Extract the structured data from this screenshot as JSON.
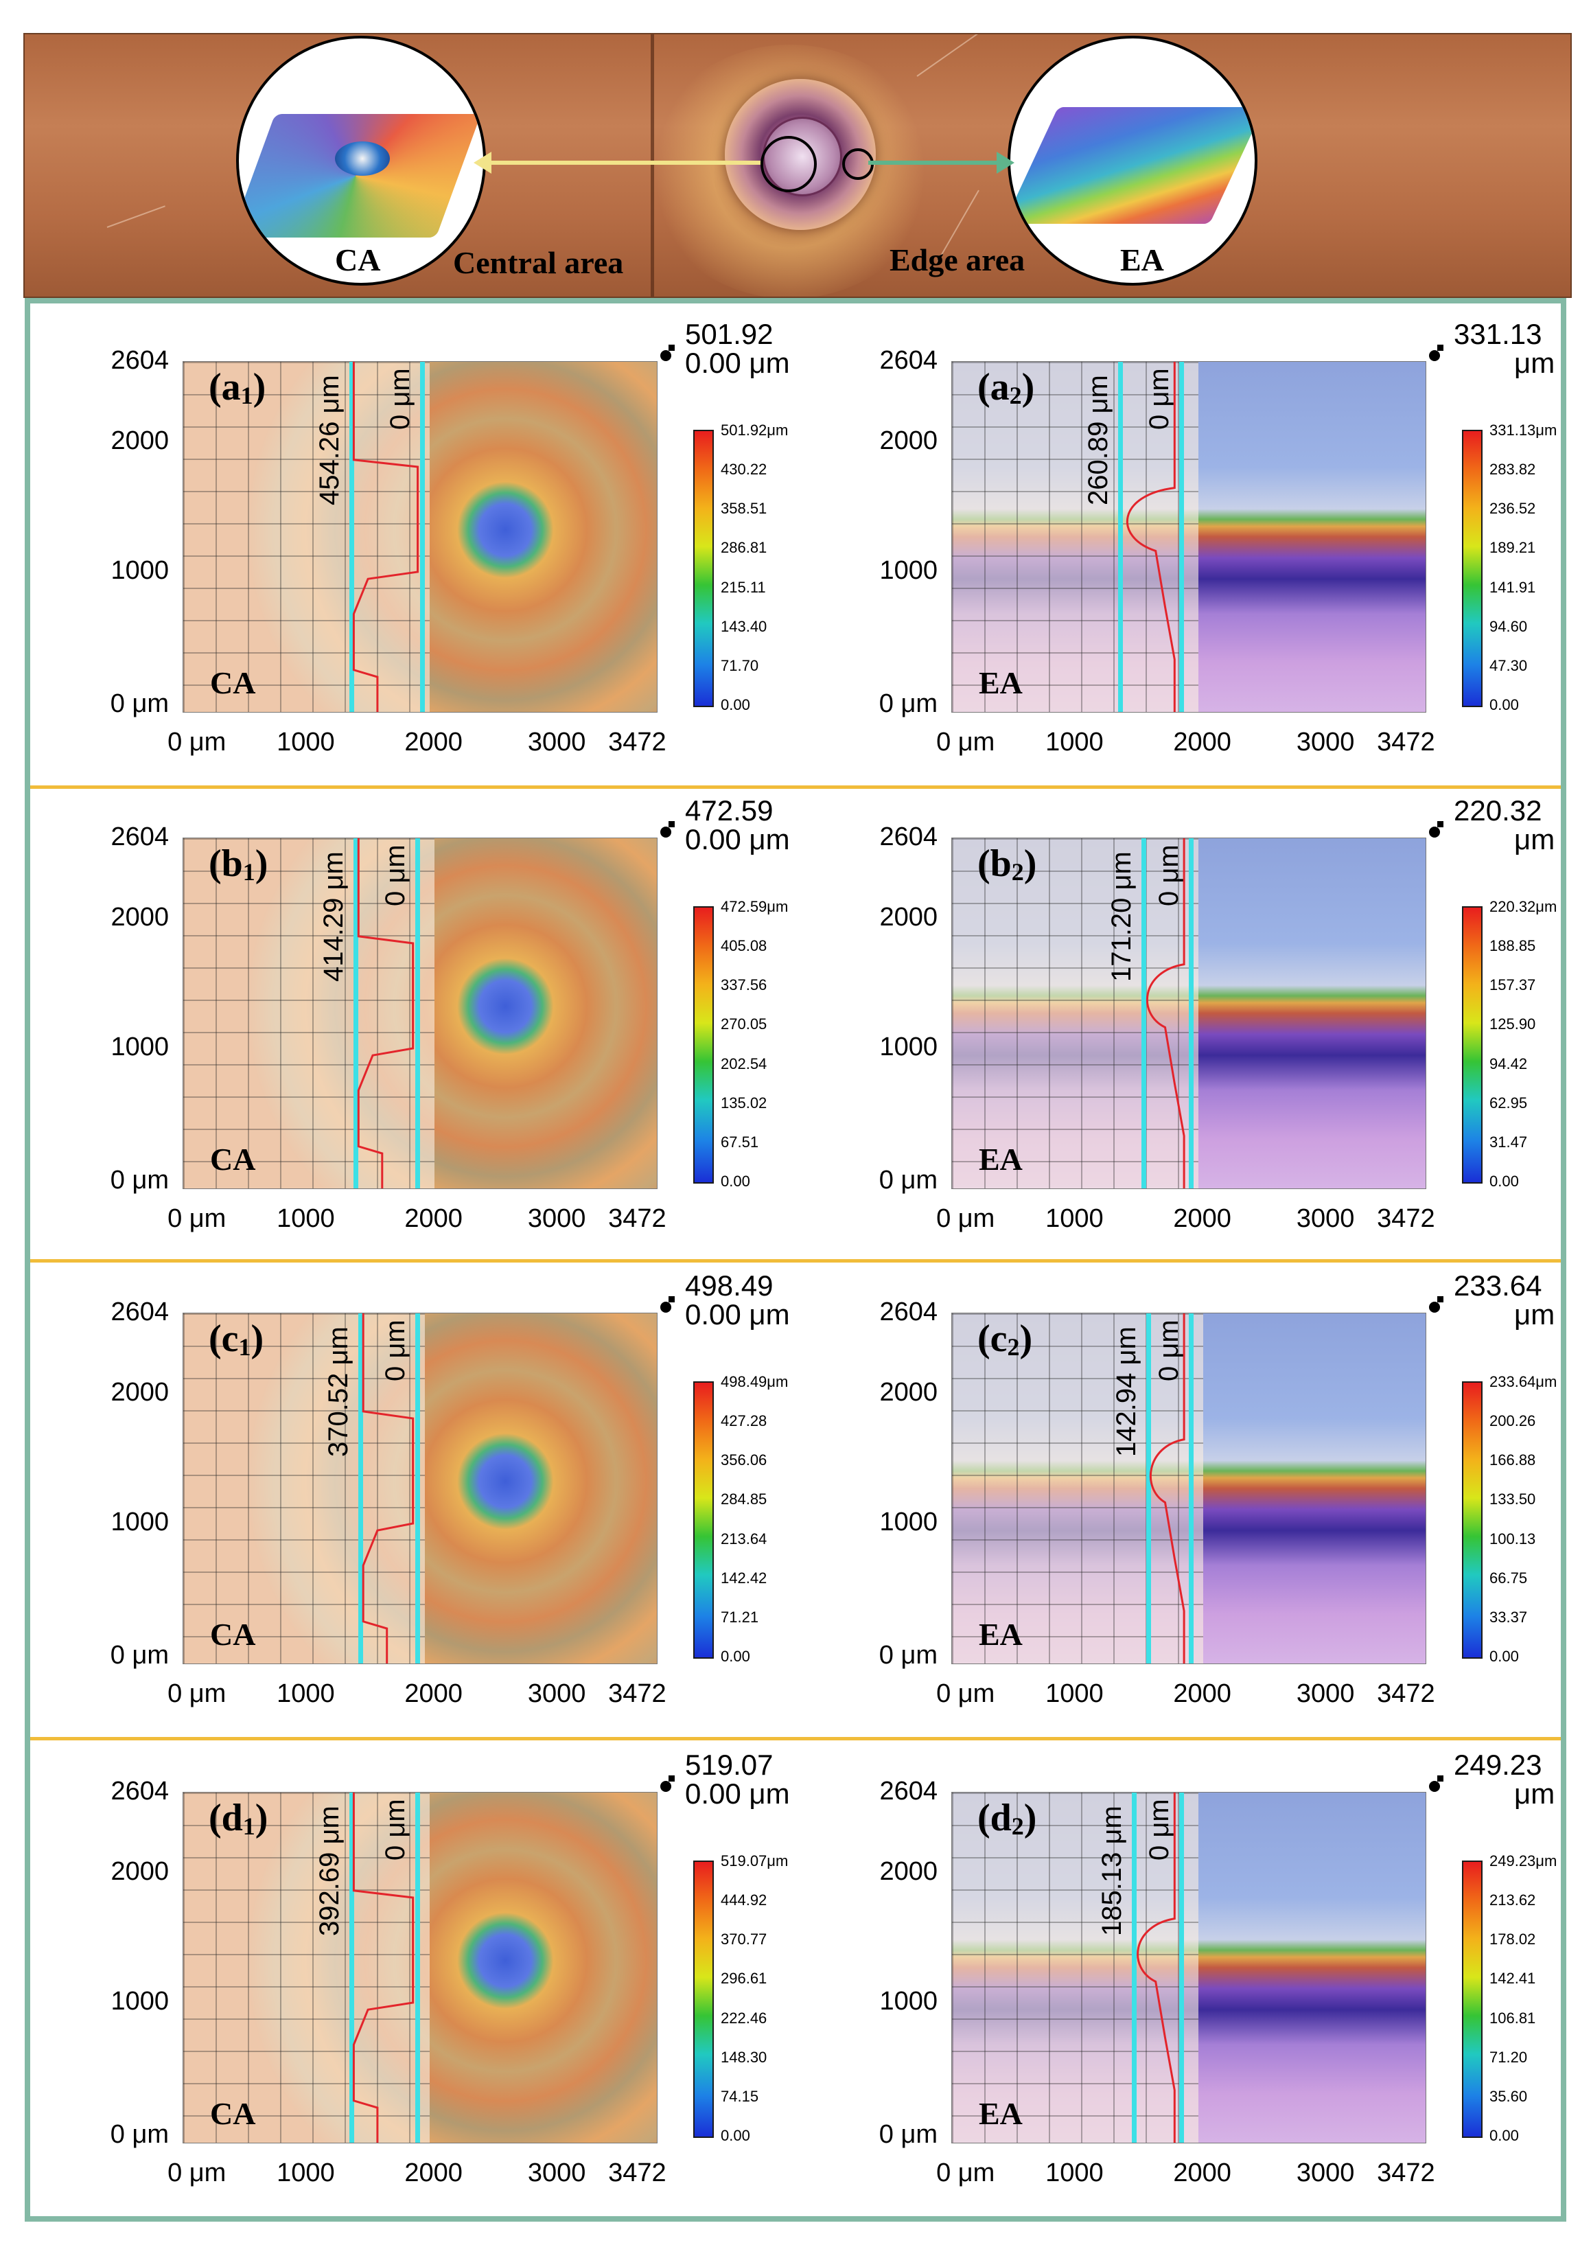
{
  "top_photo": {
    "ca_tag": "CA",
    "central_label": "Central area",
    "edge_label": "Edge area",
    "ea_tag": "EA"
  },
  "axes": {
    "y_labels": [
      "2604",
      "2000",
      "1000",
      "0 μm"
    ],
    "x_labels": [
      "0 μm",
      "1000",
      "2000",
      "3000",
      "3472"
    ]
  },
  "panels": [
    {
      "letter": "(a",
      "sub": "1",
      "tag": "CA",
      "type": "ca",
      "depth": "454.26 μm",
      "zero": "0 μm",
      "top": "501.92",
      "top2": "0.00 μm",
      "scale": [
        "501.92μm",
        "430.22",
        "358.51",
        "286.81",
        "215.11",
        "143.40",
        "71.70",
        "0.00"
      ]
    },
    {
      "letter": "(a",
      "sub": "2",
      "tag": "EA",
      "type": "ea",
      "depth": "260.89 μm",
      "zero": "0 μm",
      "top": "331.13",
      "top2": "μm",
      "scale": [
        "331.13μm",
        "283.82",
        "236.52",
        "189.21",
        "141.91",
        "94.60",
        "47.30",
        "0.00"
      ]
    },
    {
      "letter": "(b",
      "sub": "1",
      "tag": "CA",
      "type": "ca",
      "depth": "414.29 μm",
      "zero": "0 μm",
      "top": "472.59",
      "top2": "0.00 μm",
      "scale": [
        "472.59μm",
        "405.08",
        "337.56",
        "270.05",
        "202.54",
        "135.02",
        "67.51",
        "0.00"
      ]
    },
    {
      "letter": "(b",
      "sub": "2",
      "tag": "EA",
      "type": "ea",
      "depth": "171.20 μm",
      "zero": "0 μm",
      "top": "220.32",
      "top2": "μm",
      "scale": [
        "220.32μm",
        "188.85",
        "157.37",
        "125.90",
        "94.42",
        "62.95",
        "31.47",
        "0.00"
      ]
    },
    {
      "letter": "(c",
      "sub": "1",
      "tag": "CA",
      "type": "ca",
      "depth": "370.52 μm",
      "zero": "0 μm",
      "top": "498.49",
      "top2": "0.00 μm",
      "scale": [
        "498.49μm",
        "427.28",
        "356.06",
        "284.85",
        "213.64",
        "142.42",
        "71.21",
        "0.00"
      ]
    },
    {
      "letter": "(c",
      "sub": "2",
      "tag": "EA",
      "type": "ea",
      "depth": "142.94 μm",
      "zero": "0 μm",
      "top": "233.64",
      "top2": "μm",
      "scale": [
        "233.64μm",
        "200.26",
        "166.88",
        "133.50",
        "100.13",
        "66.75",
        "33.37",
        "0.00"
      ]
    },
    {
      "letter": "(d",
      "sub": "1",
      "tag": "CA",
      "type": "ca",
      "depth": "392.69 μm",
      "zero": "0 μm",
      "top": "519.07",
      "top2": "0.00 μm",
      "scale": [
        "519.07μm",
        "444.92",
        "370.77",
        "296.61",
        "222.46",
        "148.30",
        "74.15",
        "0.00"
      ]
    },
    {
      "letter": "(d",
      "sub": "2",
      "tag": "EA",
      "type": "ea",
      "depth": "185.13 μm",
      "zero": "0 μm",
      "top": "249.23",
      "top2": "μm",
      "scale": [
        "249.23μm",
        "213.62",
        "178.02",
        "142.41",
        "106.81",
        "71.20",
        "35.60",
        "0.00"
      ]
    }
  ]
}
